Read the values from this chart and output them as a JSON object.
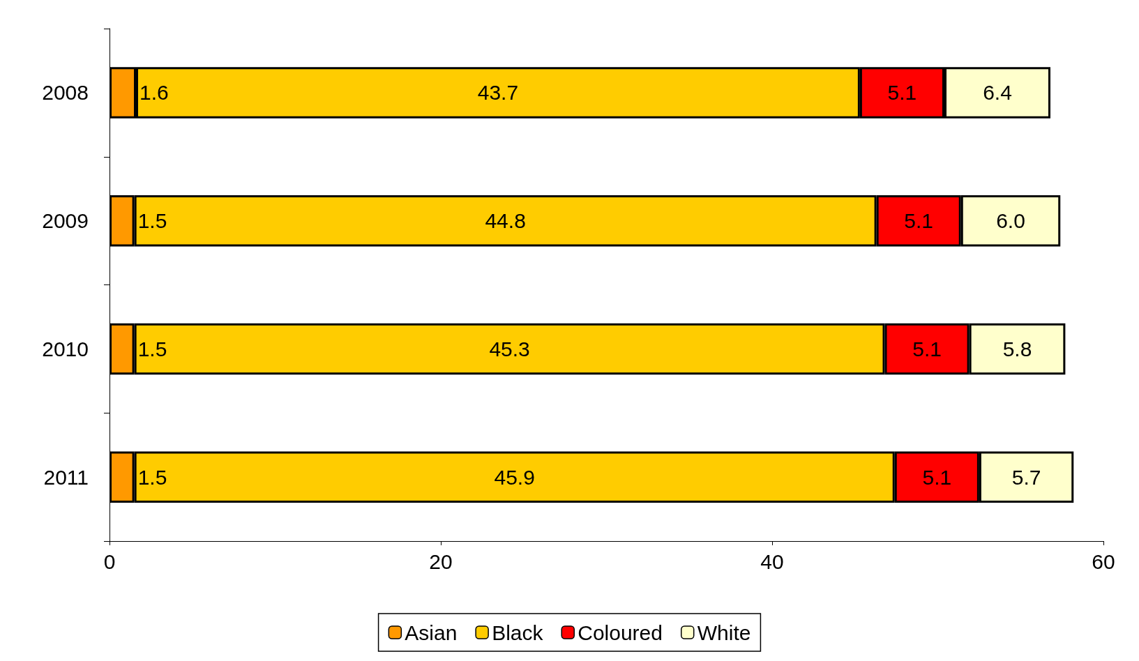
{
  "chart_data": {
    "type": "bar",
    "orientation": "horizontal",
    "stacked": true,
    "categories": [
      "2008",
      "2009",
      "2010",
      "2011"
    ],
    "series": [
      {
        "name": "Asian",
        "color": "#ff9900",
        "values": [
          1.6,
          1.5,
          1.5,
          1.5
        ]
      },
      {
        "name": "Black",
        "color": "#ffcc00",
        "values": [
          43.7,
          44.8,
          45.3,
          45.9
        ]
      },
      {
        "name": "Coloured",
        "color": "#ff0000",
        "values": [
          5.1,
          5.1,
          5.1,
          5.1
        ]
      },
      {
        "name": "White",
        "color": "#ffffcc",
        "values": [
          6.4,
          6.0,
          5.8,
          5.7
        ],
        "value_labels": [
          "6.4",
          "6.0",
          "5.8",
          "5.7"
        ]
      }
    ],
    "xlim": [
      0,
      60
    ],
    "xticks": [
      0,
      20,
      40,
      60
    ],
    "grid": false,
    "legend": "bottom",
    "data_labels": true
  }
}
